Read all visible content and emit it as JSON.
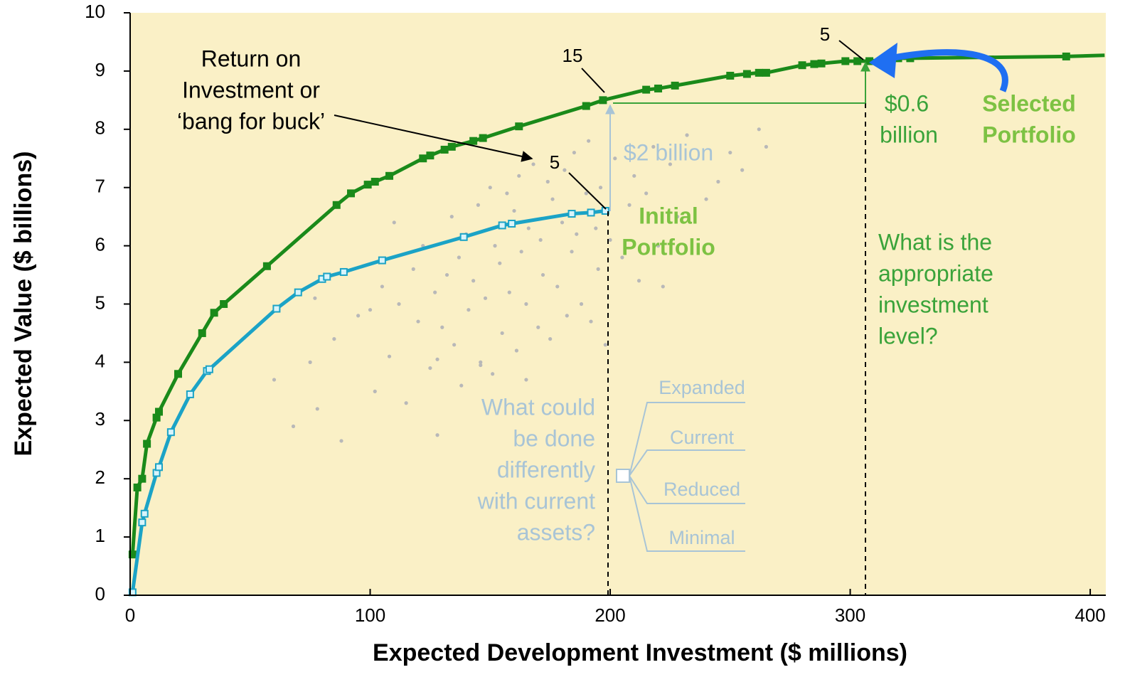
{
  "chart_data": {
    "type": "line",
    "xlabel": "Expected Development Investment ($ millions)",
    "ylabel": "Expected Value ($ billions)",
    "xlim": [
      0,
      406.5
    ],
    "ylim": [
      0,
      10
    ],
    "xticks": [
      0,
      100,
      200,
      300,
      400
    ],
    "yticks": [
      0,
      1,
      2,
      3,
      4,
      5,
      6,
      7,
      8,
      9,
      10
    ],
    "background": "#faf0c6",
    "series": [
      {
        "color": "#1a8a1a",
        "marker_fill": "#1a8a1a",
        "x": [
          1,
          3,
          5,
          7,
          11,
          12,
          20,
          30,
          35,
          39,
          57,
          86,
          92,
          99,
          102,
          108,
          122,
          125,
          131,
          134,
          143,
          147,
          162,
          190,
          197,
          215,
          220,
          227,
          250,
          257,
          262,
          265,
          280,
          285,
          288,
          298,
          303,
          308,
          320,
          325,
          390,
          406
        ],
        "values": [
          0.7,
          1.85,
          2,
          2.6,
          3.05,
          3.15,
          3.8,
          4.5,
          4.85,
          5,
          5.65,
          6.7,
          6.9,
          7.05,
          7.1,
          7.2,
          7.5,
          7.55,
          7.65,
          7.7,
          7.8,
          7.85,
          8.05,
          8.4,
          8.5,
          8.68,
          8.7,
          8.75,
          8.92,
          8.95,
          8.97,
          8.97,
          9.1,
          9.12,
          9.13,
          9.17,
          9.17,
          9.17,
          9.22,
          9.22,
          9.25,
          9.27
        ]
      },
      {
        "color": "#1ba3c6",
        "marker_fill": "#d8f4fb",
        "x": [
          1,
          5,
          6,
          11,
          12,
          17,
          25,
          32,
          33,
          61,
          70,
          80,
          82,
          89,
          105,
          139,
          155,
          159,
          184,
          192,
          198
        ],
        "values": [
          0.05,
          1.25,
          1.4,
          2.1,
          2.2,
          2.8,
          3.45,
          3.85,
          3.88,
          4.92,
          5.2,
          5.43,
          5.47,
          5.55,
          5.75,
          6.15,
          6.35,
          6.38,
          6.55,
          6.57,
          6.6
        ]
      }
    ],
    "points": {
      "color": "#b8b8b8",
      "x": [
        60,
        68,
        75,
        77,
        78,
        85,
        88,
        95,
        100,
        102,
        105,
        108,
        110,
        112,
        115,
        118,
        120,
        122,
        125,
        127,
        128,
        130,
        132,
        134,
        135,
        137,
        138,
        140,
        141,
        143,
        145,
        146,
        148,
        150,
        151,
        152,
        154,
        155,
        157,
        158,
        160,
        161,
        162,
        163,
        165,
        166,
        168,
        170,
        171,
        172,
        174,
        175,
        176,
        178,
        180,
        181,
        182,
        184,
        185,
        186,
        188,
        190,
        191,
        192,
        194,
        195,
        196,
        198,
        200,
        202,
        205,
        208,
        210,
        212,
        215,
        218,
        220,
        222,
        225,
        228,
        232,
        240,
        245,
        250,
        255,
        262,
        265,
        128,
        146,
        165
      ],
      "y": [
        3.7,
        2.9,
        4.0,
        5.1,
        3.2,
        4.4,
        2.65,
        4.8,
        4.9,
        3.5,
        5.3,
        4.1,
        6.4,
        5.0,
        3.3,
        5.6,
        4.7,
        6.0,
        3.9,
        5.2,
        2.75,
        4.6,
        5.5,
        6.5,
        4.3,
        5.8,
        3.6,
        6.2,
        4.9,
        5.4,
        6.7,
        4.0,
        5.1,
        7.0,
        3.8,
        6.0,
        5.7,
        4.5,
        6.9,
        5.2,
        6.6,
        4.2,
        7.2,
        5.9,
        5.0,
        6.3,
        7.4,
        4.6,
        6.1,
        5.5,
        7.1,
        4.4,
        6.8,
        5.3,
        6.4,
        7.3,
        4.8,
        5.9,
        7.6,
        6.2,
        5.0,
        6.9,
        7.8,
        4.7,
        6.3,
        5.6,
        7.0,
        4.3,
        6.1,
        7.5,
        5.8,
        6.7,
        7.2,
        5.4,
        6.9,
        7.7,
        6.0,
        5.3,
        7.4,
        6.5,
        7.9,
        6.8,
        7.1,
        7.6,
        7.3,
        8.0,
        7.7,
        4.05,
        3.95,
        3.7
      ]
    },
    "annotations": {
      "roi": [
        "Return on",
        "Investment or",
        "‘bang for buck’"
      ],
      "roi_count": "5",
      "frontier_count": "15",
      "selected_count": "5",
      "gap_initial": "$2 billion",
      "gap_selected": [
        "$0.6",
        "billion"
      ],
      "initial": [
        "Initial",
        "Portfolio"
      ],
      "selected": [
        "Selected",
        "Portfolio"
      ],
      "question_level": [
        "What is the",
        "appropriate",
        "investment",
        "level?"
      ],
      "question_assets": [
        "What could",
        "be done",
        "differently",
        "with current",
        "assets?"
      ],
      "options": [
        "Expanded",
        "Current",
        "Reduced",
        "Minimal"
      ]
    }
  }
}
